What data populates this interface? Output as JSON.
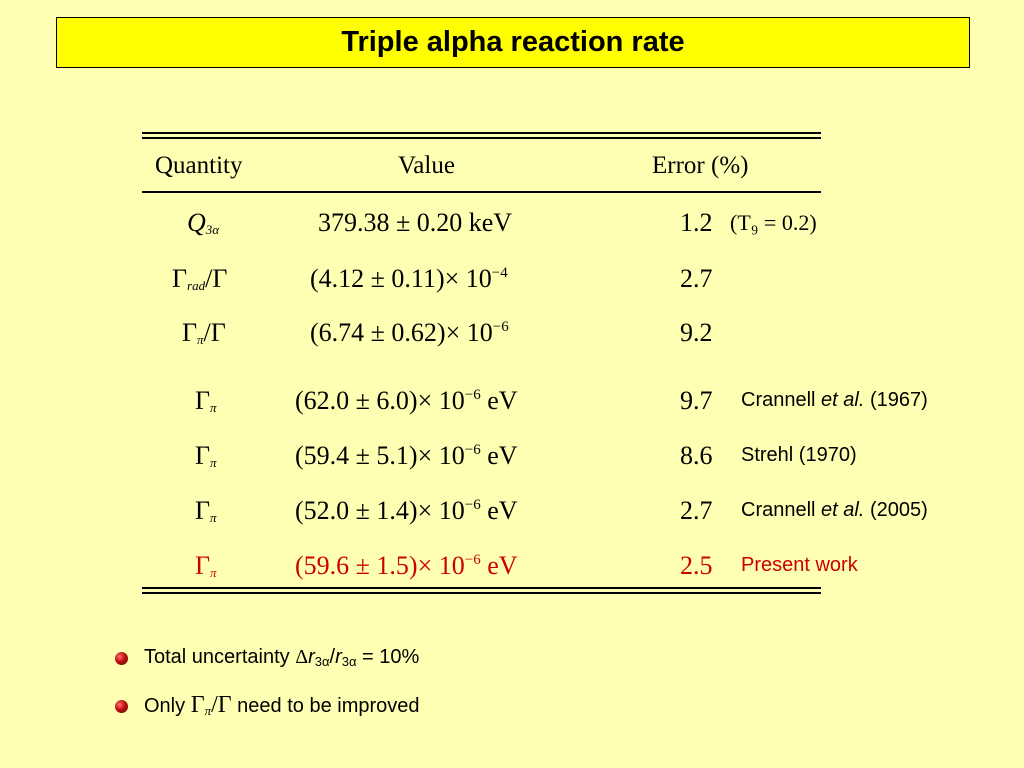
{
  "title": "Triple alpha reaction rate",
  "table": {
    "headers": [
      "Quantity",
      "Value",
      "Error (%)"
    ],
    "rows": [
      {
        "q": "Q",
        "q_sub": "3α",
        "v_main": "379.38 ± 0.20 keV",
        "err": "1.2",
        "note": "(T₉ = 0.2)"
      },
      {
        "q": "Γ",
        "q_sub": "rad",
        "q_tail": "/Γ",
        "v_main": "(4.12 ± 0.11)× 10",
        "v_exp": "−4",
        "err": "2.7"
      },
      {
        "q": "Γ",
        "q_sub": "π",
        "q_tail": "/Γ",
        "v_main": "(6.74 ± 0.62)× 10",
        "v_exp": "−6",
        "err": "9.2"
      },
      {
        "q": "Γ",
        "q_sub": "π",
        "v_main": "(62.0 ± 6.0)× 10",
        "v_exp": "−6",
        "v_unit": " eV",
        "err": "9.7",
        "ref_a": "Crannell ",
        "ref_i": "et al.",
        "ref_b": " (1967)"
      },
      {
        "q": "Γ",
        "q_sub": "π",
        "v_main": "(59.4 ± 5.1)× 10",
        "v_exp": "−6",
        "v_unit": " eV",
        "err": "8.6",
        "ref_a": "Strehl (1970)"
      },
      {
        "q": "Γ",
        "q_sub": "π",
        "v_main": "(52.0 ± 1.4)× 10",
        "v_exp": "−6",
        "v_unit": " eV",
        "err": "2.7",
        "ref_a": "Crannell ",
        "ref_i": "et al.",
        "ref_b": " (2005)"
      },
      {
        "q": "Γ",
        "q_sub": "π",
        "v_main": "(59.6 ± 1.5)× 10",
        "v_exp": "−6",
        "v_unit": " eV",
        "err": "2.5",
        "ref_a": "Present work"
      }
    ]
  },
  "bullets": {
    "b1_pre": "Total uncertainty  ",
    "b1_delta": "Δ",
    "b1_r": "r",
    "b1_sub": "3α",
    "b1_slash": "/",
    "b1_r2": "r",
    "b1_sub2": "3α",
    "b1_post": " = 10%",
    "b2_pre": "Only ",
    "b2_math": "Γ",
    "b2_sub": "π",
    "b2_tail": "/Γ",
    "b2_post": " need to be improved"
  },
  "colors": {
    "background": "#FFFFB4",
    "title_bg": "#FFFF00",
    "highlight": "#CC0000"
  }
}
